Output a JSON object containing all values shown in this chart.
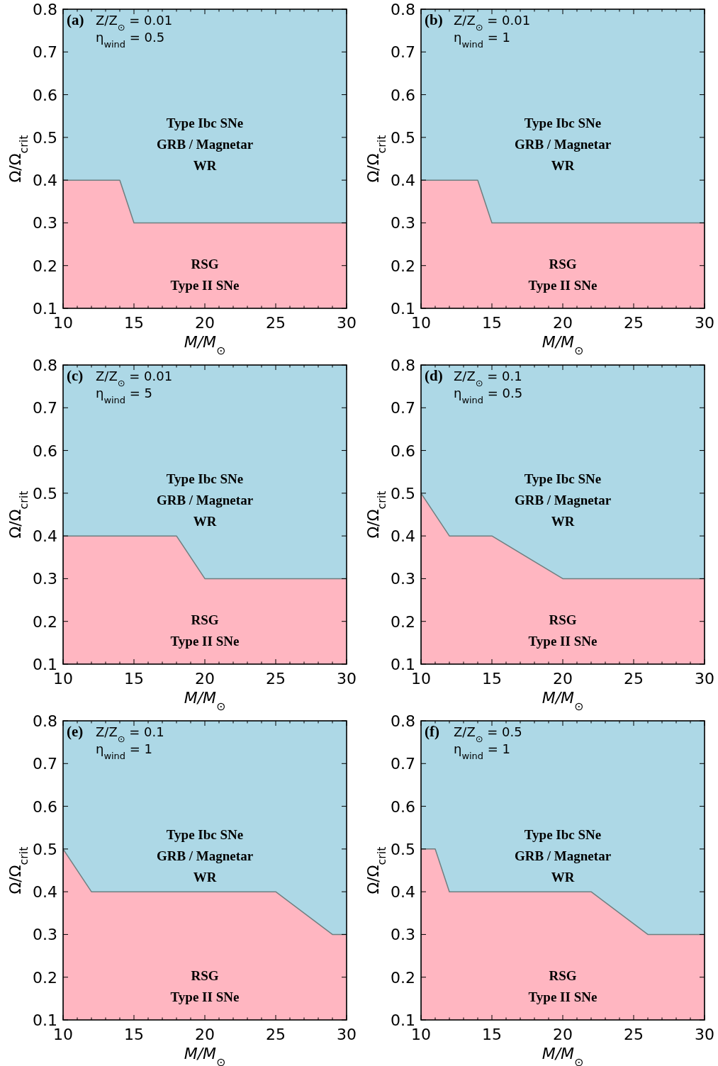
{
  "chart_data": [
    {
      "type": "area",
      "stacked": true,
      "xlabel": "M/M$_{⊙}$",
      "ylabel": "Ω/Ω$_{crit}$",
      "x": [
        10,
        14,
        15,
        30
      ],
      "xlim": [
        10,
        30
      ],
      "ylim": [
        0.1,
        0.8
      ],
      "yticks": [
        0.1,
        0.2,
        0.3,
        0.4,
        0.5,
        0.6,
        0.7,
        0.8
      ],
      "xticks": [
        10,
        {
          "value": 11,
          "label": null
        },
        {
          "value": 12,
          "label": null
        },
        {
          "value": 13,
          "label": null
        },
        {
          "value": 14,
          "label": null
        },
        15,
        {
          "value": 16,
          "label": null
        },
        {
          "value": 17,
          "label": null
        },
        {
          "value": 18,
          "label": null
        },
        {
          "value": 19,
          "label": null
        },
        20,
        {
          "value": 21,
          "label": null
        },
        {
          "value": 22,
          "label": null
        },
        {
          "value": 23,
          "label": null
        },
        {
          "value": 24,
          "label": null
        },
        25,
        {
          "value": 26,
          "label": null
        },
        {
          "value": 27,
          "label": null
        },
        {
          "value": 28,
          "label": null
        },
        {
          "value": 29,
          "label": null
        },
        30
      ],
      "series": [
        {
          "color": "#ffb6c1",
          "values": [
            0.4,
            0.4,
            0.3,
            0.3
          ]
        },
        {
          "color": "#add8e6",
          "values": [
            0.4,
            0.4,
            0.5,
            0.5
          ]
        }
      ],
      "annotations": [
        "(a)",
        "Z/Z$_{⊙}$ = 0.01",
        "η$_{wind}$ = 0.5",
        "Type Ibc SNe",
        "GRB / Magnetar",
        "WR",
        "RSG",
        "Type II SNe"
      ]
    },
    {
      "type": "area",
      "stacked": true,
      "xlabel": "M/M$_{⊙}$",
      "ylabel": "Ω/Ω$_{crit}$",
      "x": [
        10,
        14,
        15,
        30
      ],
      "xlim": [
        10,
        30
      ],
      "ylim": [
        0.1,
        0.8
      ],
      "yticks": [
        0.1,
        0.2,
        0.3,
        0.4,
        0.5,
        0.6,
        0.7,
        0.8
      ],
      "xticks": [
        10,
        {
          "value": 11,
          "label": null
        },
        {
          "value": 12,
          "label": null
        },
        {
          "value": 13,
          "label": null
        },
        {
          "value": 14,
          "label": null
        },
        15,
        {
          "value": 16,
          "label": null
        },
        {
          "value": 17,
          "label": null
        },
        {
          "value": 18,
          "label": null
        },
        {
          "value": 19,
          "label": null
        },
        20,
        {
          "value": 21,
          "label": null
        },
        {
          "value": 22,
          "label": null
        },
        {
          "value": 23,
          "label": null
        },
        {
          "value": 24,
          "label": null
        },
        25,
        {
          "value": 26,
          "label": null
        },
        {
          "value": 27,
          "label": null
        },
        {
          "value": 28,
          "label": null
        },
        {
          "value": 29,
          "label": null
        },
        30
      ],
      "series": [
        {
          "color": "#ffb6c1",
          "values": [
            0.4,
            0.4,
            0.3,
            0.3
          ]
        },
        {
          "color": "#add8e6",
          "values": [
            0.4,
            0.4,
            0.5,
            0.5
          ]
        }
      ],
      "annotations": [
        "(b)",
        "Z/Z$_{⊙}$ = 0.01",
        "η$_{wind}$ = 1",
        "Type Ibc SNe",
        "GRB / Magnetar",
        "WR",
        "RSG",
        "Type II SNe"
      ]
    },
    {
      "type": "area",
      "stacked": true,
      "xlabel": "M/M$_{⊙}$",
      "ylabel": "Ω/Ω$_{crit}$",
      "x": [
        10,
        18,
        20,
        30
      ],
      "xlim": [
        10,
        30
      ],
      "ylim": [
        0.1,
        0.8
      ],
      "yticks": [
        0.1,
        0.2,
        0.3,
        0.4,
        0.5,
        0.6,
        0.7,
        0.8
      ],
      "xticks": [
        10,
        {
          "value": 11,
          "label": null
        },
        {
          "value": 12,
          "label": null
        },
        {
          "value": 13,
          "label": null
        },
        {
          "value": 14,
          "label": null
        },
        15,
        {
          "value": 16,
          "label": null
        },
        {
          "value": 17,
          "label": null
        },
        {
          "value": 18,
          "label": null
        },
        {
          "value": 19,
          "label": null
        },
        20,
        {
          "value": 21,
          "label": null
        },
        {
          "value": 22,
          "label": null
        },
        {
          "value": 23,
          "label": null
        },
        {
          "value": 24,
          "label": null
        },
        25,
        {
          "value": 26,
          "label": null
        },
        {
          "value": 27,
          "label": null
        },
        {
          "value": 28,
          "label": null
        },
        {
          "value": 29,
          "label": null
        },
        30
      ],
      "series": [
        {
          "color": "#ffb6c1",
          "values": [
            0.4,
            0.4,
            0.3,
            0.3
          ]
        },
        {
          "color": "#add8e6",
          "values": [
            0.4,
            0.4,
            0.5,
            0.5
          ]
        }
      ],
      "annotations": [
        "(c)",
        "Z/Z$_{⊙}$ = 0.01",
        "η$_{wind}$ = 5",
        "Type Ibc SNe",
        "GRB / Magnetar",
        "WR",
        "RSG",
        "Type II SNe"
      ]
    },
    {
      "type": "area",
      "stacked": true,
      "xlabel": "M/M$_{⊙}$",
      "ylabel": "Ω/Ω$_{crit}$",
      "x": [
        10,
        12,
        15,
        20,
        30
      ],
      "xlim": [
        10,
        30
      ],
      "ylim": [
        0.1,
        0.8
      ],
      "yticks": [
        0.1,
        0.2,
        0.3,
        0.4,
        0.5,
        0.6,
        0.7,
        0.8
      ],
      "xticks": [
        10,
        {
          "value": 11,
          "label": null
        },
        {
          "value": 12,
          "label": null
        },
        {
          "value": 13,
          "label": null
        },
        {
          "value": 14,
          "label": null
        },
        15,
        {
          "value": 16,
          "label": null
        },
        {
          "value": 17,
          "label": null
        },
        {
          "value": 18,
          "label": null
        },
        {
          "value": 19,
          "label": null
        },
        20,
        {
          "value": 21,
          "label": null
        },
        {
          "value": 22,
          "label": null
        },
        {
          "value": 23,
          "label": null
        },
        {
          "value": 24,
          "label": null
        },
        25,
        {
          "value": 26,
          "label": null
        },
        {
          "value": 27,
          "label": null
        },
        {
          "value": 28,
          "label": null
        },
        {
          "value": 29,
          "label": null
        },
        30
      ],
      "series": [
        {
          "color": "#ffb6c1",
          "values": [
            0.5,
            0.4,
            0.4,
            0.3,
            0.3
          ]
        },
        {
          "color": "#add8e6",
          "values": [
            0.3,
            0.4,
            0.4,
            0.5,
            0.5
          ]
        }
      ],
      "annotations": [
        "(d)",
        "Z/Z$_{⊙}$ = 0.1",
        "η$_{wind}$ = 0.5",
        "Type Ibc SNe",
        "GRB / Magnetar",
        "WR",
        "RSG",
        "Type II SNe"
      ]
    },
    {
      "type": "area",
      "stacked": true,
      "xlabel": "M/M$_{⊙}$",
      "ylabel": "Ω/Ω$_{crit}$",
      "x": [
        10,
        12,
        25,
        29,
        30
      ],
      "xlim": [
        10,
        30
      ],
      "ylim": [
        0.1,
        0.8
      ],
      "yticks": [
        0.1,
        0.2,
        0.3,
        0.4,
        0.5,
        0.6,
        0.7,
        0.8
      ],
      "xticks": [
        10,
        {
          "value": 11,
          "label": null
        },
        {
          "value": 12,
          "label": null
        },
        {
          "value": 13,
          "label": null
        },
        {
          "value": 14,
          "label": null
        },
        15,
        {
          "value": 16,
          "label": null
        },
        {
          "value": 17,
          "label": null
        },
        {
          "value": 18,
          "label": null
        },
        {
          "value": 19,
          "label": null
        },
        20,
        {
          "value": 21,
          "label": null
        },
        {
          "value": 22,
          "label": null
        },
        {
          "value": 23,
          "label": null
        },
        {
          "value": 24,
          "label": null
        },
        25,
        {
          "value": 26,
          "label": null
        },
        {
          "value": 27,
          "label": null
        },
        {
          "value": 28,
          "label": null
        },
        {
          "value": 29,
          "label": null
        },
        30
      ],
      "series": [
        {
          "color": "#ffb6c1",
          "values": [
            0.5,
            0.4,
            0.4,
            0.3,
            0.3
          ]
        },
        {
          "color": "#add8e6",
          "values": [
            0.3,
            0.4,
            0.4,
            0.5,
            0.5
          ]
        }
      ],
      "annotations": [
        "(e)",
        "Z/Z$_{⊙}$ = 0.1",
        "η$_{wind}$ = 1",
        "Type Ibc SNe",
        "GRB / Magnetar",
        "WR",
        "RSG",
        "Type II SNe"
      ]
    },
    {
      "type": "area",
      "stacked": true,
      "xlabel": "M/M$_{⊙}$",
      "ylabel": "Ω/Ω$_{crit}$",
      "x": [
        10,
        11,
        12,
        22,
        26,
        30
      ],
      "xlim": [
        10,
        30
      ],
      "ylim": [
        0.1,
        0.8
      ],
      "yticks": [
        0.1,
        0.2,
        0.3,
        0.4,
        0.5,
        0.6,
        0.7,
        0.8
      ],
      "xticks": [
        10,
        {
          "value": 11,
          "label": null
        },
        {
          "value": 12,
          "label": null
        },
        {
          "value": 13,
          "label": null
        },
        {
          "value": 14,
          "label": null
        },
        15,
        {
          "value": 16,
          "label": null
        },
        {
          "value": 17,
          "label": null
        },
        {
          "value": 18,
          "label": null
        },
        {
          "value": 19,
          "label": null
        },
        20,
        {
          "value": 21,
          "label": null
        },
        {
          "value": 22,
          "label": null
        },
        {
          "value": 23,
          "label": null
        },
        {
          "value": 24,
          "label": null
        },
        25,
        {
          "value": 26,
          "label": null
        },
        {
          "value": 27,
          "label": null
        },
        {
          "value": 28,
          "label": null
        },
        {
          "value": 29,
          "label": null
        },
        30
      ],
      "series": [
        {
          "color": "#ffb6c1",
          "values": [
            0.5,
            0.5,
            0.4,
            0.4,
            0.3,
            0.3
          ]
        },
        {
          "color": "#add8e6",
          "values": [
            0.3,
            0.3,
            0.4,
            0.4,
            0.5,
            0.5
          ]
        }
      ],
      "annotations": [
        "(f)",
        "Z/Z$_{⊙}$ = 0.5",
        "η$_{wind}$ = 1",
        "Type Ibc SNe",
        "GRB / Magnetar",
        "WR",
        "RSG",
        "Type II SNe"
      ]
    }
  ]
}
